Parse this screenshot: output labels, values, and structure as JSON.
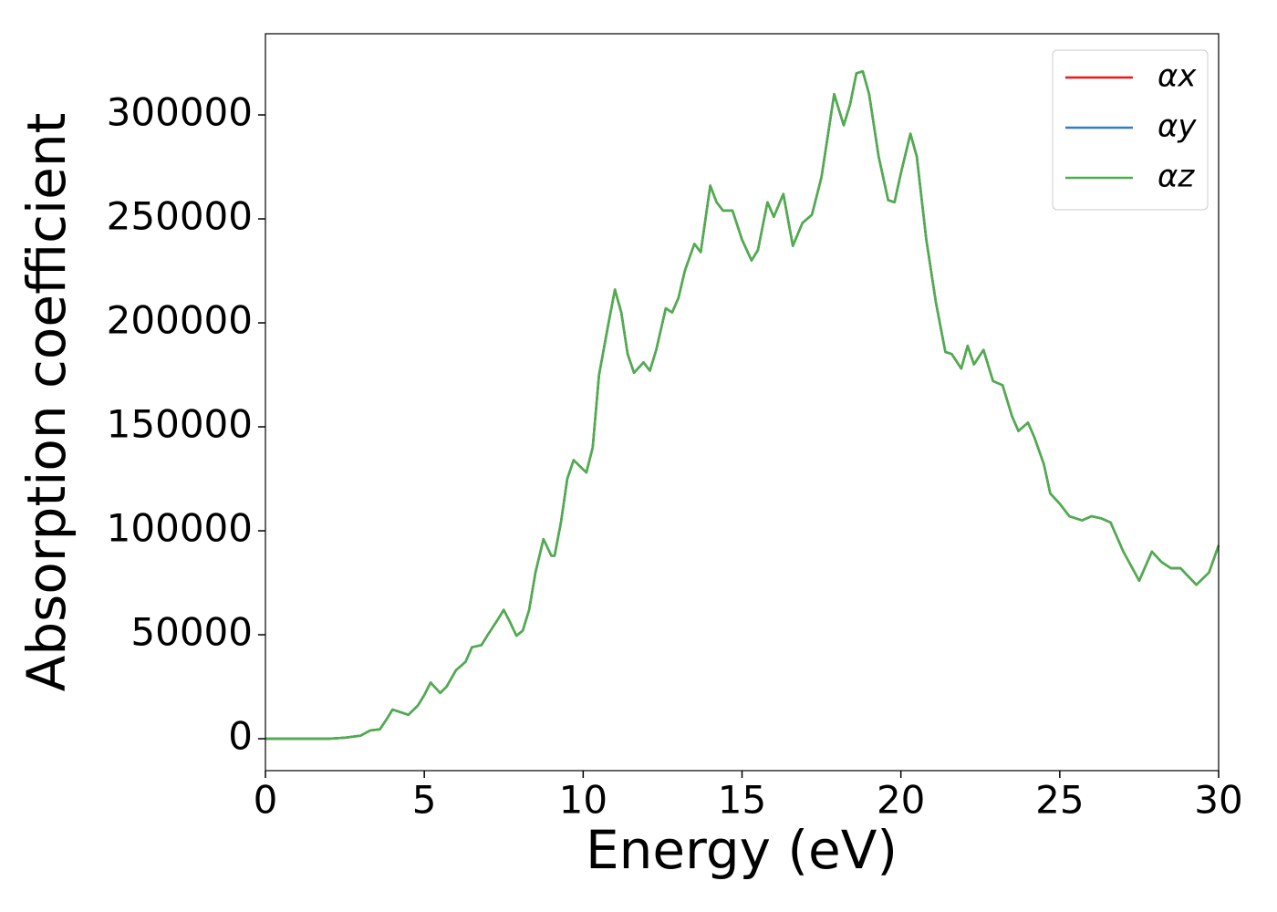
{
  "chart_data": {
    "type": "line",
    "xlabel": "Energy (eV)",
    "ylabel": "Absorption coefficient",
    "x": [
      0,
      2,
      2.5,
      3,
      3.3,
      3.6,
      3.8,
      4.0,
      4.2,
      4.5,
      4.8,
      5.0,
      5.2,
      5.5,
      5.7,
      6.0,
      6.3,
      6.5,
      6.8,
      7.0,
      7.3,
      7.5,
      7.7,
      7.9,
      8.1,
      8.3,
      8.5,
      8.75,
      9.0,
      9.1,
      9.3,
      9.5,
      9.7,
      9.9,
      10.1,
      10.3,
      10.5,
      10.8,
      11.0,
      11.2,
      11.4,
      11.6,
      11.9,
      12.1,
      12.3,
      12.6,
      12.8,
      13.0,
      13.2,
      13.5,
      13.7,
      14.0,
      14.2,
      14.4,
      14.7,
      15.0,
      15.3,
      15.5,
      15.8,
      16.0,
      16.3,
      16.6,
      16.9,
      17.2,
      17.5,
      17.9,
      18.2,
      18.4,
      18.6,
      18.8,
      19.0,
      19.3,
      19.6,
      19.8,
      20.0,
      20.3,
      20.5,
      20.8,
      21.1,
      21.4,
      21.6,
      21.9,
      22.1,
      22.3,
      22.6,
      22.9,
      23.2,
      23.5,
      23.7,
      24.0,
      24.2,
      24.5,
      24.7,
      25.0,
      25.3,
      25.7,
      26.0,
      26.3,
      26.6,
      27.0,
      27.5,
      27.9,
      28.2,
      28.5,
      28.8,
      29.3,
      29.7,
      30.0
    ],
    "series": [
      {
        "name": "αx",
        "color": "#e41a1c",
        "values": [
          0,
          0,
          500,
          1500,
          4000,
          4500,
          9000,
          14000,
          13000,
          11500,
          16000,
          21000,
          27000,
          22000,
          25000,
          33000,
          37000,
          44000,
          45000,
          50000,
          57000,
          62000,
          56000,
          49500,
          52000,
          62000,
          80000,
          96000,
          88000,
          88000,
          104000,
          125000,
          134000,
          131000,
          128000,
          140000,
          175000,
          200000,
          216000,
          205000,
          185000,
          176000,
          181000,
          177000,
          187000,
          207000,
          205000,
          212000,
          225000,
          238000,
          234000,
          266000,
          258000,
          254000,
          254000,
          240000,
          230000,
          235000,
          258000,
          251000,
          262000,
          237000,
          248000,
          252000,
          270000,
          310000,
          295000,
          305000,
          320000,
          321000,
          310000,
          280000,
          259000,
          258000,
          272000,
          291000,
          280000,
          240000,
          210000,
          186000,
          185000,
          178000,
          189000,
          180000,
          187000,
          172000,
          170000,
          155000,
          148000,
          152000,
          145000,
          132000,
          118000,
          113000,
          107000,
          105000,
          107000,
          106000,
          104000,
          90000,
          76000,
          90000,
          85000,
          82000,
          82000,
          74000,
          80000,
          93000
        ]
      },
      {
        "name": "αy",
        "color": "#377eb8",
        "values": [
          0,
          0,
          500,
          1500,
          4000,
          4500,
          9000,
          14000,
          13000,
          11500,
          16000,
          21000,
          27000,
          22000,
          25000,
          33000,
          37000,
          44000,
          45000,
          50000,
          57000,
          62000,
          56000,
          49500,
          52000,
          62000,
          80000,
          96000,
          88000,
          88000,
          104000,
          125000,
          134000,
          131000,
          128000,
          140000,
          175000,
          200000,
          216000,
          205000,
          185000,
          176000,
          181000,
          177000,
          187000,
          207000,
          205000,
          212000,
          225000,
          238000,
          234000,
          266000,
          258000,
          254000,
          254000,
          240000,
          230000,
          235000,
          258000,
          251000,
          262000,
          237000,
          248000,
          252000,
          270000,
          310000,
          295000,
          305000,
          320000,
          321000,
          310000,
          280000,
          259000,
          258000,
          272000,
          291000,
          280000,
          240000,
          210000,
          186000,
          185000,
          178000,
          189000,
          180000,
          187000,
          172000,
          170000,
          155000,
          148000,
          152000,
          145000,
          132000,
          118000,
          113000,
          107000,
          105000,
          107000,
          106000,
          104000,
          90000,
          76000,
          90000,
          85000,
          82000,
          82000,
          74000,
          80000,
          93000
        ]
      },
      {
        "name": "αz",
        "color": "#4daf4a",
        "values": [
          0,
          0,
          500,
          1500,
          4000,
          4500,
          9000,
          14000,
          13000,
          11500,
          16000,
          21000,
          27000,
          22000,
          25000,
          33000,
          37000,
          44000,
          45000,
          50000,
          57000,
          62000,
          56000,
          49500,
          52000,
          62000,
          80000,
          96000,
          88000,
          88000,
          104000,
          125000,
          134000,
          131000,
          128000,
          140000,
          175000,
          200000,
          216000,
          205000,
          185000,
          176000,
          181000,
          177000,
          187000,
          207000,
          205000,
          212000,
          225000,
          238000,
          234000,
          266000,
          258000,
          254000,
          254000,
          240000,
          230000,
          235000,
          258000,
          251000,
          262000,
          237000,
          248000,
          252000,
          270000,
          310000,
          295000,
          305000,
          320000,
          321000,
          310000,
          280000,
          259000,
          258000,
          272000,
          291000,
          280000,
          240000,
          210000,
          186000,
          185000,
          178000,
          189000,
          180000,
          187000,
          172000,
          170000,
          155000,
          148000,
          152000,
          145000,
          132000,
          118000,
          113000,
          107000,
          105000,
          107000,
          106000,
          104000,
          90000,
          76000,
          90000,
          85000,
          82000,
          82000,
          74000,
          80000,
          93000
        ]
      }
    ],
    "xlim": [
      0,
      30
    ],
    "xticks": [
      0,
      5,
      10,
      15,
      20,
      25,
      30
    ],
    "ylim": [
      -15350,
      339040
    ],
    "yticks": [
      0,
      50000,
      100000,
      150000,
      200000,
      250000,
      300000
    ],
    "legend": "upper right",
    "grid": false
  }
}
